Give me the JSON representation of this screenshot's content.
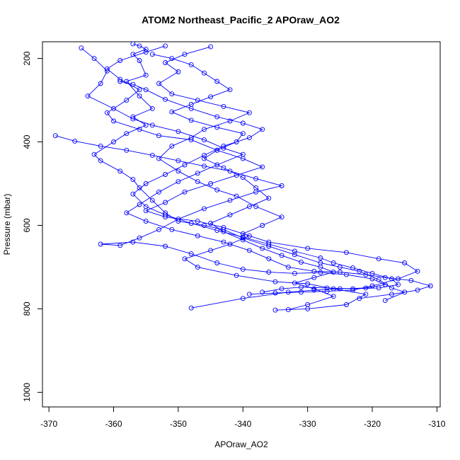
{
  "chart_data": {
    "type": "line",
    "title": "ATOM2 Northeast_Pacific_2 APOraw_AO2",
    "xlabel": "APOraw_AO2",
    "ylabel": "Pressure (mbar)",
    "xlim": [
      -371,
      -309.5
    ],
    "ylim": [
      1035,
      160
    ],
    "y_reversed": true,
    "x_ticks": [
      -370,
      -360,
      -350,
      -340,
      -330,
      -320,
      -310
    ],
    "y_ticks": [
      200,
      400,
      600,
      800,
      1000
    ],
    "grid": false,
    "legend": "none",
    "marker": "open-circle",
    "color": "#0000ff",
    "series": [
      {
        "points": [
          [
            -357,
            165
          ],
          [
            -356,
            170
          ],
          [
            -355,
            178
          ],
          [
            -357,
            190
          ],
          [
            -356,
            205
          ],
          [
            -355,
            240
          ],
          [
            -358,
            255
          ],
          [
            -356,
            290
          ],
          [
            -354,
            320
          ],
          [
            -357,
            340
          ],
          [
            -355,
            360
          ],
          [
            -358,
            380
          ],
          [
            -360,
            400
          ],
          [
            -363,
            430
          ],
          [
            -362,
            445
          ],
          [
            -359,
            470
          ],
          [
            -357,
            490
          ],
          [
            -356,
            510
          ],
          [
            -354,
            540
          ],
          [
            -352,
            570
          ],
          [
            -350,
            590
          ],
          [
            -346,
            600
          ],
          [
            -343,
            610
          ],
          [
            -340,
            630
          ],
          [
            -336,
            650
          ],
          [
            -332,
            670
          ],
          [
            -328,
            690
          ],
          [
            -325,
            700
          ],
          [
            -322,
            710
          ],
          [
            -319,
            730
          ],
          [
            -317,
            750
          ],
          [
            -315,
            760
          ],
          [
            -318,
            780
          ]
        ]
      },
      {
        "points": [
          [
            -352,
            170
          ],
          [
            -355,
            185
          ],
          [
            -359,
            205
          ],
          [
            -361,
            225
          ],
          [
            -359,
            250
          ],
          [
            -356,
            275
          ],
          [
            -358,
            300
          ],
          [
            -361,
            330
          ],
          [
            -360,
            350
          ],
          [
            -356,
            370
          ],
          [
            -353,
            385
          ],
          [
            -348,
            395
          ],
          [
            -344,
            420
          ],
          [
            -340,
            440
          ],
          [
            -337,
            460
          ],
          [
            -341,
            480
          ],
          [
            -345,
            500
          ],
          [
            -349,
            520
          ],
          [
            -352,
            545
          ],
          [
            -355,
            565
          ],
          [
            -352,
            580
          ],
          [
            -347,
            590
          ],
          [
            -343,
            605
          ],
          [
            -339,
            625
          ],
          [
            -342,
            645
          ],
          [
            -345,
            660
          ],
          [
            -349,
            680
          ],
          [
            -347,
            700
          ],
          [
            -341,
            720
          ],
          [
            -335,
            735
          ],
          [
            -330,
            740
          ],
          [
            -326,
            752
          ],
          [
            -321,
            765
          ],
          [
            -324,
            790
          ],
          [
            -330,
            800
          ],
          [
            -335,
            803
          ]
        ]
      },
      {
        "points": [
          [
            -345,
            172
          ],
          [
            -349,
            190
          ],
          [
            -352,
            210
          ],
          [
            -350,
            232
          ],
          [
            -353,
            260
          ],
          [
            -351,
            285
          ],
          [
            -347,
            300
          ],
          [
            -343,
            315
          ],
          [
            -339,
            330
          ],
          [
            -342,
            350
          ],
          [
            -346,
            370
          ],
          [
            -348,
            390
          ],
          [
            -351,
            410
          ],
          [
            -353,
            440
          ],
          [
            -350,
            470
          ],
          [
            -347,
            495
          ],
          [
            -344,
            515
          ],
          [
            -341,
            530
          ],
          [
            -338,
            555
          ],
          [
            -334,
            580
          ],
          [
            -337,
            600
          ],
          [
            -340,
            620
          ],
          [
            -336,
            640
          ],
          [
            -330,
            655
          ],
          [
            -324,
            665
          ],
          [
            -319,
            680
          ],
          [
            -315,
            690
          ],
          [
            -313,
            710
          ],
          [
            -316,
            728
          ],
          [
            -320,
            745
          ],
          [
            -323,
            755
          ],
          [
            -327,
            758
          ],
          [
            -331,
            760
          ],
          [
            -335,
            762
          ],
          [
            -339,
            765
          ]
        ]
      },
      {
        "points": [
          [
            -365,
            175
          ],
          [
            -363,
            200
          ],
          [
            -361,
            230
          ],
          [
            -362,
            260
          ],
          [
            -364,
            290
          ],
          [
            -360,
            320
          ],
          [
            -357,
            345
          ],
          [
            -354,
            360
          ],
          [
            -350,
            375
          ],
          [
            -346,
            395
          ],
          [
            -343,
            415
          ],
          [
            -340,
            430
          ],
          [
            -344,
            455
          ],
          [
            -347,
            475
          ],
          [
            -350,
            495
          ],
          [
            -353,
            520
          ],
          [
            -356,
            550
          ],
          [
            -358,
            570
          ],
          [
            -355,
            590
          ],
          [
            -351,
            610
          ],
          [
            -347,
            625
          ],
          [
            -343,
            640
          ],
          [
            -339,
            660
          ],
          [
            -336,
            680
          ],
          [
            -333,
            700
          ],
          [
            -329,
            710
          ],
          [
            -325,
            712
          ],
          [
            -321,
            718
          ],
          [
            -318,
            725
          ],
          [
            -314,
            732
          ],
          [
            -311,
            745
          ],
          [
            -313,
            755
          ],
          [
            -317,
            765
          ],
          [
            -322,
            775
          ]
        ]
      },
      {
        "points": [
          [
            -369,
            385
          ],
          [
            -366,
            398
          ],
          [
            -362,
            410
          ],
          [
            -358,
            420
          ],
          [
            -354,
            432
          ],
          [
            -350,
            445
          ],
          [
            -346,
            458
          ],
          [
            -342,
            470
          ],
          [
            -338,
            488
          ],
          [
            -334,
            505
          ],
          [
            -338,
            520
          ],
          [
            -342,
            540
          ],
          [
            -346,
            560
          ],
          [
            -350,
            585
          ],
          [
            -353,
            610
          ],
          [
            -356,
            630
          ],
          [
            -359,
            648
          ],
          [
            -362,
            645
          ],
          [
            -357,
            640
          ],
          [
            -352,
            650
          ],
          [
            -348,
            668
          ],
          [
            -344,
            690
          ],
          [
            -340,
            705
          ],
          [
            -336,
            712
          ],
          [
            -332,
            715
          ],
          [
            -328,
            713
          ],
          [
            -324,
            718
          ],
          [
            -320,
            728
          ],
          [
            -318,
            742
          ],
          [
            -321,
            750
          ],
          [
            -325,
            752
          ],
          [
            -329,
            755
          ],
          [
            -333,
            760
          ],
          [
            -340,
            775
          ],
          [
            -348,
            798
          ]
        ]
      },
      {
        "points": [
          [
            -359,
            255
          ],
          [
            -357,
            262
          ],
          [
            -355,
            275
          ],
          [
            -352,
            298
          ],
          [
            -348,
            320
          ],
          [
            -344,
            340
          ],
          [
            -340,
            355
          ],
          [
            -337,
            370
          ],
          [
            -339,
            390
          ],
          [
            -343,
            410
          ],
          [
            -346,
            432
          ],
          [
            -349,
            455
          ],
          [
            -352,
            478
          ],
          [
            -355,
            500
          ],
          [
            -357,
            525
          ],
          [
            -355,
            555
          ],
          [
            -352,
            575
          ],
          [
            -348,
            595
          ],
          [
            -344,
            612
          ],
          [
            -340,
            628
          ],
          [
            -336,
            645
          ],
          [
            -332,
            662
          ],
          [
            -328,
            678
          ],
          [
            -326,
            690
          ],
          [
            -323,
            702
          ],
          [
            -320,
            715
          ],
          [
            -317,
            728
          ],
          [
            -316,
            742
          ],
          [
            -319,
            750
          ],
          [
            -323,
            752
          ],
          [
            -327,
            750
          ],
          [
            -331,
            748
          ],
          [
            -334,
            752
          ],
          [
            -337,
            760
          ]
        ]
      },
      {
        "points": [
          [
            -354,
            190
          ],
          [
            -351,
            200
          ],
          [
            -348,
            215
          ],
          [
            -346,
            235
          ],
          [
            -344,
            255
          ],
          [
            -342,
            275
          ],
          [
            -345,
            292
          ],
          [
            -348,
            310
          ],
          [
            -351,
            328
          ],
          [
            -348,
            348
          ],
          [
            -344,
            365
          ],
          [
            -340,
            380
          ],
          [
            -341,
            400
          ],
          [
            -344,
            420
          ],
          [
            -346,
            440
          ],
          [
            -343,
            462
          ],
          [
            -340,
            485
          ],
          [
            -338,
            510
          ],
          [
            -336,
            535
          ],
          [
            -339,
            555
          ],
          [
            -342,
            575
          ],
          [
            -345,
            595
          ],
          [
            -343,
            615
          ],
          [
            -340,
            635
          ],
          [
            -337,
            655
          ],
          [
            -334,
            672
          ],
          [
            -331,
            688
          ],
          [
            -328,
            700
          ],
          [
            -326,
            712
          ],
          [
            -329,
            725
          ],
          [
            -332,
            738
          ],
          [
            -329,
            752
          ],
          [
            -326,
            770
          ],
          [
            -330,
            790
          ],
          [
            -333,
            802
          ]
        ]
      }
    ]
  }
}
